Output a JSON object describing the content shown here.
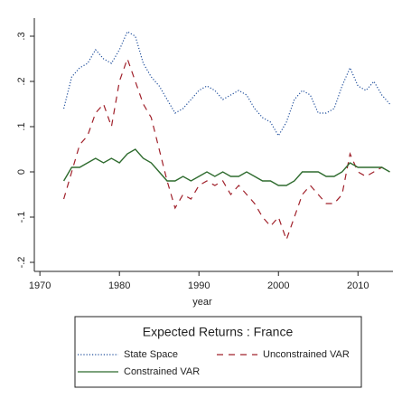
{
  "chart_data": {
    "type": "line",
    "x_label": "year",
    "legend_title": "Expected Returns : France",
    "x": [
      1973,
      1974,
      1975,
      1976,
      1977,
      1978,
      1979,
      1980,
      1981,
      1982,
      1983,
      1984,
      1985,
      1986,
      1987,
      1988,
      1989,
      1990,
      1991,
      1992,
      1993,
      1994,
      1995,
      1996,
      1997,
      1998,
      1999,
      2000,
      2001,
      2002,
      2003,
      2004,
      2005,
      2006,
      2007,
      2008,
      2009,
      2010,
      2011,
      2012,
      2013,
      2014
    ],
    "series": [
      {
        "name": "State Space",
        "color": "#1f4e9c",
        "style": "dot",
        "values": [
          0.14,
          0.21,
          0.23,
          0.24,
          0.27,
          0.25,
          0.24,
          0.27,
          0.31,
          0.3,
          0.24,
          0.21,
          0.19,
          0.16,
          0.13,
          0.14,
          0.16,
          0.18,
          0.19,
          0.18,
          0.16,
          0.17,
          0.18,
          0.17,
          0.14,
          0.12,
          0.11,
          0.08,
          0.11,
          0.16,
          0.18,
          0.17,
          0.13,
          0.13,
          0.14,
          0.19,
          0.23,
          0.19,
          0.18,
          0.2,
          0.17,
          0.15
        ]
      },
      {
        "name": "Unconstrained VAR",
        "color": "#a0202a",
        "style": "dash",
        "values": [
          -0.06,
          0.0,
          0.06,
          0.08,
          0.13,
          0.15,
          0.1,
          0.2,
          0.25,
          0.2,
          0.15,
          0.12,
          0.05,
          -0.02,
          -0.08,
          -0.05,
          -0.06,
          -0.03,
          -0.02,
          -0.03,
          -0.02,
          -0.05,
          -0.03,
          -0.05,
          -0.07,
          -0.1,
          -0.12,
          -0.1,
          -0.15,
          -0.1,
          -0.05,
          -0.03,
          -0.05,
          -0.07,
          -0.07,
          -0.05,
          0.04,
          0.0,
          -0.01,
          0.0,
          0.01,
          0.0
        ]
      },
      {
        "name": "Constrained VAR",
        "color": "#2e6b2e",
        "style": "solid",
        "values": [
          -0.02,
          0.01,
          0.01,
          0.02,
          0.03,
          0.02,
          0.03,
          0.02,
          0.04,
          0.05,
          0.03,
          0.02,
          0.0,
          -0.02,
          -0.02,
          -0.01,
          -0.02,
          -0.01,
          0.0,
          -0.01,
          0.0,
          -0.01,
          -0.01,
          0.0,
          -0.01,
          -0.02,
          -0.02,
          -0.03,
          -0.03,
          -0.02,
          0.0,
          0.0,
          0.0,
          -0.01,
          -0.01,
          0.0,
          0.02,
          0.01,
          0.01,
          0.01,
          0.01,
          0.0
        ]
      }
    ],
    "xlim": [
      1969.3,
      2014.4
    ],
    "xticks": [
      1970,
      1980,
      1990,
      2000,
      2010
    ],
    "ylim": [
      -0.22,
      0.34
    ],
    "yticks": [
      {
        "value": -0.2,
        "label": "-.2"
      },
      {
        "value": -0.1,
        "label": "-.1"
      },
      0,
      {
        "value": 0.1,
        "label": ".1"
      },
      {
        "value": 0.2,
        "label": ".2"
      },
      {
        "value": 0.3,
        "label": ".3"
      }
    ],
    "grid": false
  }
}
